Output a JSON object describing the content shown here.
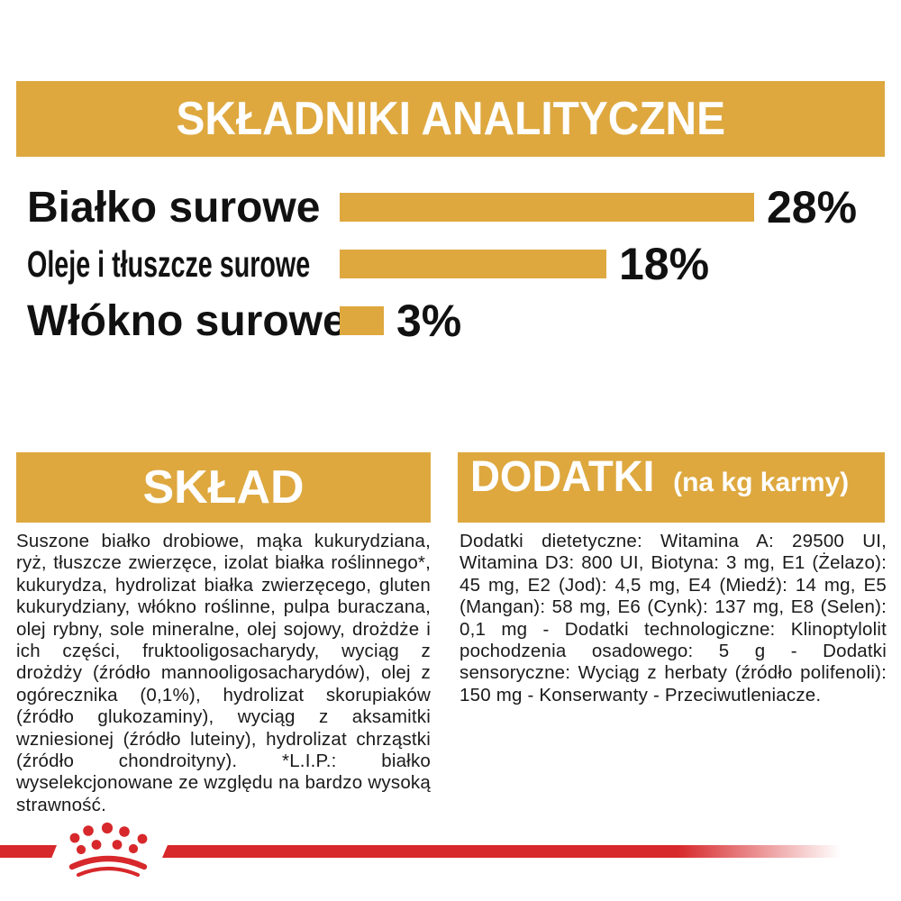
{
  "page": {
    "header": {
      "title": "SKŁADNIKI ANALITYCZNE"
    },
    "analytics": {
      "rows": [
        {
          "label": "Białko surowe",
          "value_label": "28%"
        },
        {
          "label": "Oleje i tłuszcze surowe",
          "value_label": "18%"
        },
        {
          "label": "Włókno surowe",
          "value_label": "3%"
        }
      ]
    },
    "sklad": {
      "title": "SKŁAD",
      "body": "Suszone białko drobiowe, mąka kukurydziana, ryż, tłuszcze zwierzęce, izolat białka roślinnego*, kukurydza, hydrolizat białka zwierzęcego, gluten kukurydziany, włókno roślinne, pulpa buraczana, olej rybny, sole mineralne, olej sojowy, drożdże i ich części, fruktooligosacharydy, wyciąg z drożdży (źródło mannooligosacharydów), olej z ogórecznika (0,1%), hydrolizat skorupiaków (źródło glukozaminy), wyciąg z aksamitki wzniesionej (źródło luteiny), hydrolizat chrząstki (źródło chondroityny). *L.I.P.: białko wyselekcjonowane ze względu na bardzo wysoką strawność."
    },
    "dodatki": {
      "title": "DODATKI",
      "subtitle": "(na kg karmy)",
      "body": "Dodatki dietetyczne: Witamina A: 29500 UI, Witamina D3: 800 UI, Biotyna: 3 mg, E1 (Żelazo): 45 mg, E2 (Jod): 4,5 mg, E4 (Miedź): 14 mg, E5 (Mangan): 58 mg, E6 (Cynk): 137 mg, E8 (Selen): 0,1 mg - Dodatki technologiczne: Klinoptylolit pochodzenia osadowego: 5 g - Dodatki sensoryczne: Wyciąg z herbaty (źródło polifenoli): 150 mg - Konserwanty - Przeciwutleniacze."
    },
    "footer": {
      "logo": "royal-canin-crown"
    },
    "colors": {
      "gold": "#DEA83F",
      "red": "#D7282B",
      "text": "#1A1A1A",
      "band_text": "#FFFFFF"
    }
  },
  "chart_data": {
    "type": "bar",
    "orientation": "horizontal",
    "title": "SKŁADNIKI ANALITYCZNE",
    "categories": [
      "Białko surowe",
      "Oleje i tłuszcze surowe",
      "Włókno surowe"
    ],
    "values": [
      28,
      18,
      3
    ],
    "unit": "%",
    "data_labels": [
      "28%",
      "18%",
      "3%"
    ],
    "xlim": [
      0,
      28
    ],
    "bar_color": "#DEA83F",
    "grid": false,
    "legend": false
  }
}
